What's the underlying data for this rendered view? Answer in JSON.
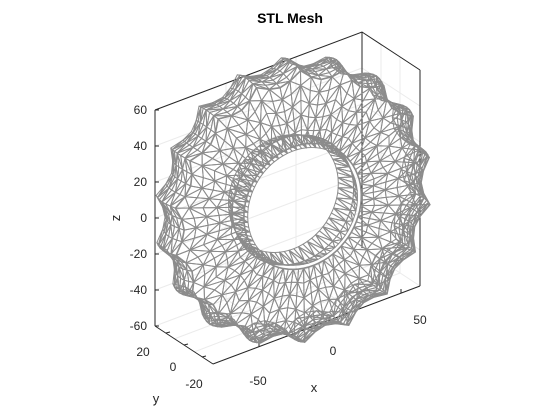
{
  "figure": {
    "title": "STL Mesh"
  },
  "axes": {
    "xlabel": "x",
    "ylabel": "y",
    "zlabel": "z",
    "x_ticks": [
      "-50",
      "0",
      "50"
    ],
    "y_ticks": [
      "20",
      "0",
      "-20"
    ],
    "z_ticks": [
      "60",
      "40",
      "20",
      "0",
      "-20",
      "-40",
      "-60"
    ],
    "grid": true,
    "box": true
  },
  "mesh": {
    "shape": "toroidal tire with lugged outer tread",
    "edge_color": "#8c8c8c",
    "face_color": "#ffffff",
    "tread_lugs": 18
  },
  "colors": {
    "axis": "#262626",
    "grid": "#ebebeb",
    "box": "#262626"
  }
}
